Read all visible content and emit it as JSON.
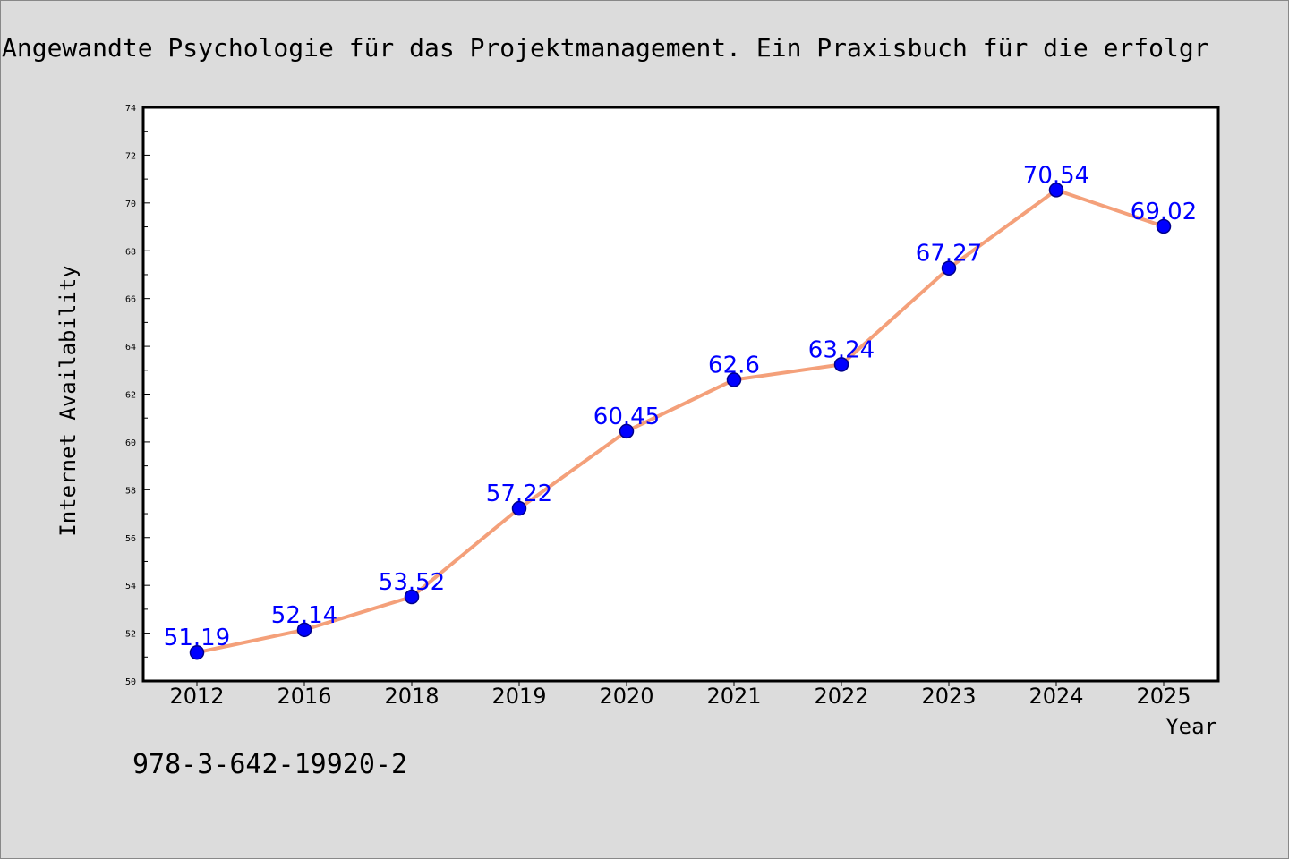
{
  "chart_data": {
    "type": "line",
    "title": "Angewandte Psychologie für das Projektmanagement. Ein Praxisbuch für die erfolgr",
    "xlabel": "Year",
    "ylabel": "Internet Availability",
    "categories": [
      "2012",
      "2016",
      "2018",
      "2019",
      "2020",
      "2021",
      "2022",
      "2023",
      "2024",
      "2025"
    ],
    "series": [
      {
        "values": [
          51.19,
          52.14,
          53.52,
          57.22,
          60.45,
          62.6,
          63.24,
          67.27,
          70.54,
          69.02
        ]
      }
    ],
    "data_labels": [
      "51.19",
      "52.14",
      "53.52",
      "57.22",
      "60.45",
      "62.6",
      "63.24",
      "67.27",
      "70.54",
      "69.02"
    ],
    "ylim": [
      50,
      74
    ],
    "yticks": [
      50,
      52,
      54,
      56,
      58,
      60,
      62,
      64,
      66,
      68,
      70,
      72,
      74
    ],
    "grid": false,
    "colors": {
      "line": "#f4a07a",
      "marker": "#0000ff",
      "marker_edge": "#00008b",
      "data_label": "#0000ff",
      "plot_background": "#ffffff",
      "figure_background": "#dcdcdc"
    }
  },
  "annotation": {
    "isbn": "978-3-642-19920-2"
  }
}
